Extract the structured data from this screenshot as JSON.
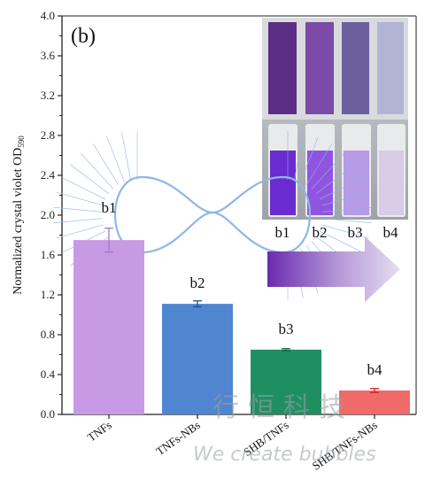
{
  "chart_data": {
    "type": "bar",
    "panel_label": "(b)",
    "ylabel_main": "Normalized crystal violet OD",
    "ylabel_sub": "590",
    "ylim": [
      0,
      4.0
    ],
    "yticks": [
      "0.0",
      "0.4",
      "0.8",
      "1.2",
      "1.6",
      "2.0",
      "2.4",
      "2.8",
      "3.2",
      "3.6",
      "4.0"
    ],
    "categories": [
      "TNFs",
      "TNFs-NBs",
      "SHB/TNFs",
      "SHB/TNFs-NBs"
    ],
    "values": [
      1.75,
      1.11,
      0.65,
      0.24
    ],
    "errors": [
      0.12,
      0.03,
      0.01,
      0.02
    ],
    "bar_labels": [
      "b1",
      "b2",
      "b3",
      "b4"
    ],
    "colors": [
      "#c89ae6",
      "#4f86cf",
      "#1f8f62",
      "#f06a6a"
    ],
    "error_colors": [
      "#a677cc",
      "#1d4f9a",
      "#0e6a44",
      "#d62020"
    ],
    "inset_labels": [
      "b1",
      "b2",
      "b3",
      "b4"
    ]
  },
  "watermark": {
    "chinese": "行恒科技",
    "english": "We create bubbles"
  }
}
